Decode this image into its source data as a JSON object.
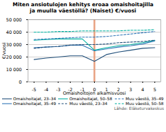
{
  "chart_data": {
    "type": "line",
    "title": "Miten ansiotulojen kehitys eroaa omaishoitajilla\nja muulla väestöllä? (Naiset) €/vuosi",
    "xlabel": "Omaishoitojen alkamisvuosi",
    "ylabel": "€/vuosi",
    "caption": "Lähde: Eläketurvakeskus",
    "x": [
      -5,
      -4,
      -3,
      -2,
      -1,
      0,
      1,
      2,
      3,
      4,
      5
    ],
    "series": [
      {
        "name": "Omaishoitajat, 23–34",
        "color": "#1f4e79",
        "line_style": "solid",
        "values": [
          18000,
          19200,
          20000,
          21000,
          21000,
          16500,
          22000,
          24000,
          25500,
          27000,
          27500
        ]
      },
      {
        "name": "Omaishoitajat, 35–49",
        "color": "#2e75b6",
        "line_style": "solid",
        "values": [
          27500,
          28000,
          28500,
          29500,
          29500,
          25000,
          26500,
          28000,
          29000,
          30500,
          33000
        ]
      },
      {
        "name": "Omaishoitajat, 50–58",
        "color": "#00b0a0",
        "line_style": "solid",
        "values": [
          33500,
          34000,
          34500,
          34500,
          34500,
          25500,
          27500,
          29000,
          30000,
          31500,
          33500
        ]
      },
      {
        "name": "Muu väestö, 23–34",
        "color": "#1f4e79",
        "line_style": "dashed",
        "values": [
          27000,
          28000,
          28500,
          29500,
          30000,
          30000,
          30500,
          31500,
          32000,
          32500,
          33500
        ]
      },
      {
        "name": "Muu väestö, 35–49",
        "color": "#2e75b6",
        "line_style": "dashed",
        "values": [
          34000,
          34500,
          35000,
          35500,
          36000,
          36000,
          36500,
          37500,
          38500,
          39500,
          40500
        ]
      },
      {
        "name": "Muu väestö, 50–58",
        "color": "#00b0a0",
        "line_style": "dashed",
        "values": [
          40000,
          40000,
          40500,
          40500,
          41000,
          41000,
          41000,
          41000,
          41500,
          41500,
          42000
        ]
      }
    ],
    "vline": {
      "x": 0,
      "color": "#e8a080"
    },
    "xlim": [
      -5.5,
      5.5
    ],
    "xticks": [
      -5,
      -4,
      -3,
      -2,
      -1,
      0,
      1,
      2,
      3,
      4,
      5
    ],
    "ylim": [
      0,
      50000
    ],
    "yticks": [
      0,
      {
        "value": 10000,
        "label": "10 000"
      },
      {
        "value": 20000,
        "label": "20 000"
      },
      {
        "value": 30000,
        "label": "30 000"
      },
      {
        "value": 40000,
        "label": "40 000"
      },
      {
        "value": 50000,
        "label": "50 000"
      }
    ],
    "grid": "y",
    "legend": "bottom"
  }
}
